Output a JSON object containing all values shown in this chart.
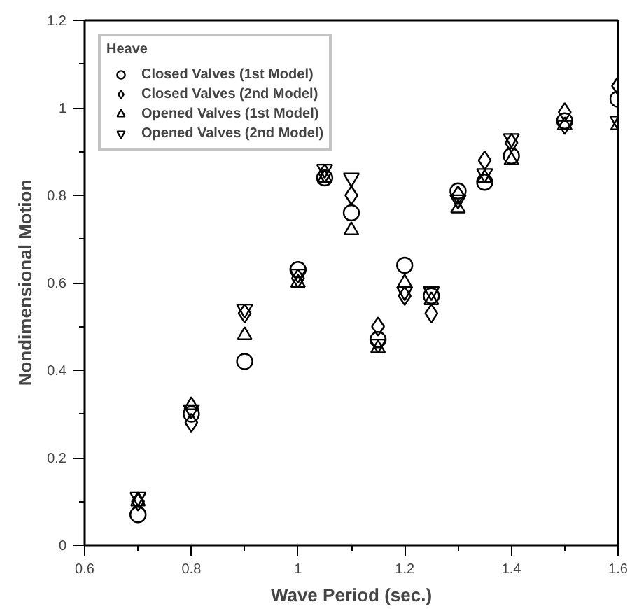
{
  "chart_data": {
    "type": "scatter",
    "xlabel": "Wave Period (sec.)",
    "ylabel": "Nondimensional Motion",
    "legend_title": "Heave",
    "x": [
      0.7,
      0.8,
      0.9,
      1.0,
      1.05,
      1.1,
      1.15,
      1.2,
      1.25,
      1.3,
      1.35,
      1.4,
      1.5,
      1.6
    ],
    "series": [
      {
        "name": "Closed Valves (1st Model)",
        "color": "#000000",
        "marker": "circle",
        "values": [
          0.07,
          0.3,
          0.42,
          0.63,
          0.84,
          0.76,
          0.47,
          0.64,
          0.57,
          0.81,
          0.83,
          0.89,
          0.97,
          1.02
        ]
      },
      {
        "name": "Closed Valves (2nd Model)",
        "color": "#000000",
        "marker": "diamond",
        "values": [
          0.1,
          0.28,
          0.53,
          0.61,
          0.85,
          0.8,
          0.5,
          0.57,
          0.53,
          0.8,
          0.88,
          0.92,
          0.99,
          1.05
        ]
      },
      {
        "name": "Opened Valves (1st Model)",
        "color": "#000000",
        "marker": "triangle",
        "values": [
          0.1,
          0.32,
          0.48,
          0.6,
          0.84,
          0.72,
          0.45,
          0.6,
          0.56,
          0.77,
          0.84,
          0.88,
          0.96,
          0.96
        ]
      },
      {
        "name": "Opened Valves (2nd Model)",
        "color": "#000000",
        "marker": "triangle_down",
        "values": [
          0.11,
          0.31,
          0.54,
          0.62,
          0.86,
          0.84,
          0.46,
          0.58,
          0.58,
          0.79,
          0.85,
          0.93,
          0.96,
          0.97
        ]
      }
    ],
    "xlim": [
      0.6,
      1.6
    ],
    "ylim": [
      0,
      1.2
    ],
    "xticks": [
      0.6,
      0.8,
      1,
      1.2,
      1.4,
      1.6
    ],
    "yticks": [
      0,
      0.2,
      0.4,
      0.6,
      0.8,
      1,
      1.2
    ],
    "grid": false,
    "legend": "top left"
  }
}
